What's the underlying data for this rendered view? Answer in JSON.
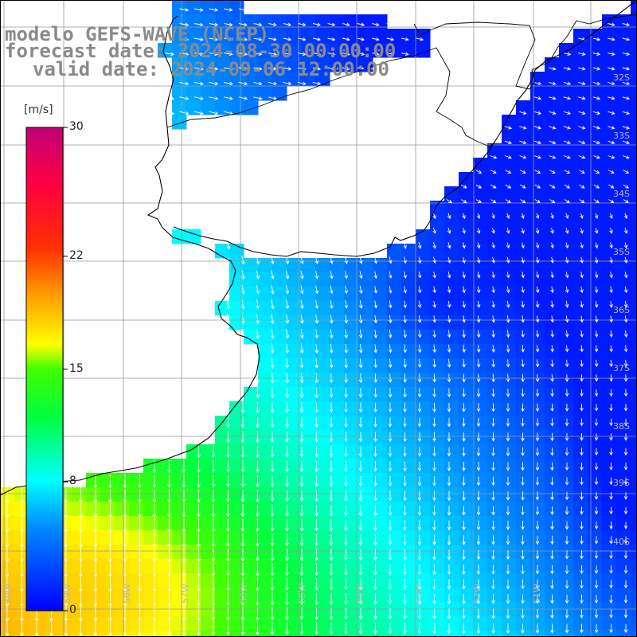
{
  "map": {
    "title_model": "modelo GEFS-WAVE (NCEP)",
    "forecast_date": "forecast date: 2024-08-30 00:00:00",
    "valid_date": "valid date: 2024-09-06 12:00:00",
    "field": "wind speed and direction",
    "colorbar": {
      "unit": "[m/s]",
      "min": 0,
      "max": 30,
      "ticks": [
        "30",
        "22",
        "15",
        "8",
        "0"
      ],
      "tick_values": [
        30,
        22,
        15,
        8,
        0
      ],
      "colors": [
        "#0000ff",
        "#00ffff",
        "#00ff00",
        "#ffff00",
        "#ff0000",
        "#c00078"
      ]
    },
    "latitude_labels": [
      "32S",
      "33S",
      "34S",
      "35S",
      "36S",
      "37S",
      "38S",
      "39S",
      "40S"
    ],
    "longitude_labels": [
      "60W",
      "59W",
      "58W",
      "57W",
      "56W",
      "55W",
      "54W",
      "53W",
      "52W",
      "51W"
    ],
    "land_color": "#ffffff",
    "coastline_color": "#000000",
    "grid_color": "#999999",
    "arrow_color": "#ffffff"
  }
}
